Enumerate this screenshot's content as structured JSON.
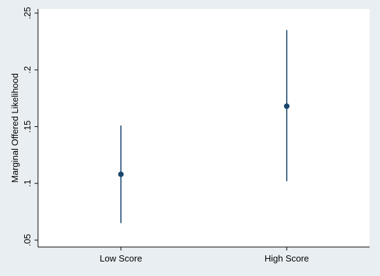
{
  "chart_data": {
    "type": "scatter",
    "title": "",
    "xlabel": "",
    "ylabel": "Marginal Offered Likelihood",
    "categories": [
      "Low Score",
      "High Score"
    ],
    "points": [
      {
        "category": "Low Score",
        "estimate": 0.108,
        "ci_low": 0.065,
        "ci_high": 0.151
      },
      {
        "category": "High Score",
        "estimate": 0.168,
        "ci_low": 0.102,
        "ci_high": 0.235
      }
    ],
    "yticks": [
      ".05",
      ".1",
      ".15",
      ".2",
      ".25"
    ],
    "ytick_values": [
      0.05,
      0.1,
      0.15,
      0.2,
      0.25
    ],
    "ylim": [
      0.05,
      0.255
    ],
    "grid": false,
    "legend": "none",
    "colors": {
      "background": "#e9eef2",
      "plot_area": "#ffffff",
      "marker": "#1a476f",
      "axis": "#000000"
    }
  }
}
